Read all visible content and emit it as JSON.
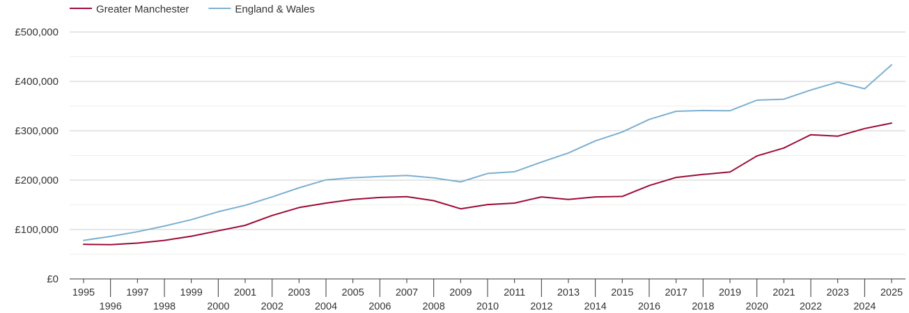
{
  "chart_data": {
    "type": "line",
    "title": "",
    "xlabel": "",
    "ylabel": "",
    "x": [
      1995,
      1996,
      1997,
      1998,
      1999,
      2000,
      2001,
      2002,
      2003,
      2004,
      2005,
      2006,
      2007,
      2008,
      2009,
      2010,
      2011,
      2012,
      2013,
      2014,
      2015,
      2016,
      2017,
      2018,
      2019,
      2020,
      2021,
      2022,
      2023,
      2024,
      2025
    ],
    "xlim": [
      1995,
      2025
    ],
    "ylim": [
      0,
      500000
    ],
    "yticks": [
      0,
      100000,
      200000,
      300000,
      400000,
      500000
    ],
    "ytick_labels": [
      "£0",
      "£100,000",
      "£200,000",
      "£300,000",
      "£400,000",
      "£500,000"
    ],
    "xtick_labels": [
      "1995",
      "1996",
      "1997",
      "1998",
      "1999",
      "2000",
      "2001",
      "2002",
      "2003",
      "2004",
      "2005",
      "2006",
      "2007",
      "2008",
      "2009",
      "2010",
      "2011",
      "2012",
      "2013",
      "2014",
      "2015",
      "2016",
      "2017",
      "2018",
      "2019",
      "2020",
      "2021",
      "2022",
      "2023",
      "2024",
      "2025"
    ],
    "grid": true,
    "legend": "top-left",
    "series": [
      {
        "name": "Greater Manchester",
        "color": "#9b0a34",
        "values": [
          70000,
          69500,
          72500,
          78000,
          86500,
          97500,
          108500,
          128500,
          144500,
          153500,
          161000,
          165000,
          166500,
          158500,
          142000,
          150500,
          153500,
          166000,
          161000,
          166000,
          167000,
          189000,
          205500,
          211500,
          216500,
          249000,
          265000,
          292000,
          289000,
          304500,
          315500
        ]
      },
      {
        "name": "England & Wales",
        "color": "#7bafd0",
        "values": [
          78000,
          86000,
          95500,
          107000,
          120000,
          136000,
          149000,
          166000,
          184500,
          200500,
          205000,
          207500,
          209500,
          204500,
          196500,
          213500,
          217000,
          236500,
          255000,
          279500,
          297500,
          323000,
          339500,
          341000,
          340500,
          362000,
          364000,
          382500,
          398500,
          385000,
          433500
        ]
      }
    ]
  }
}
